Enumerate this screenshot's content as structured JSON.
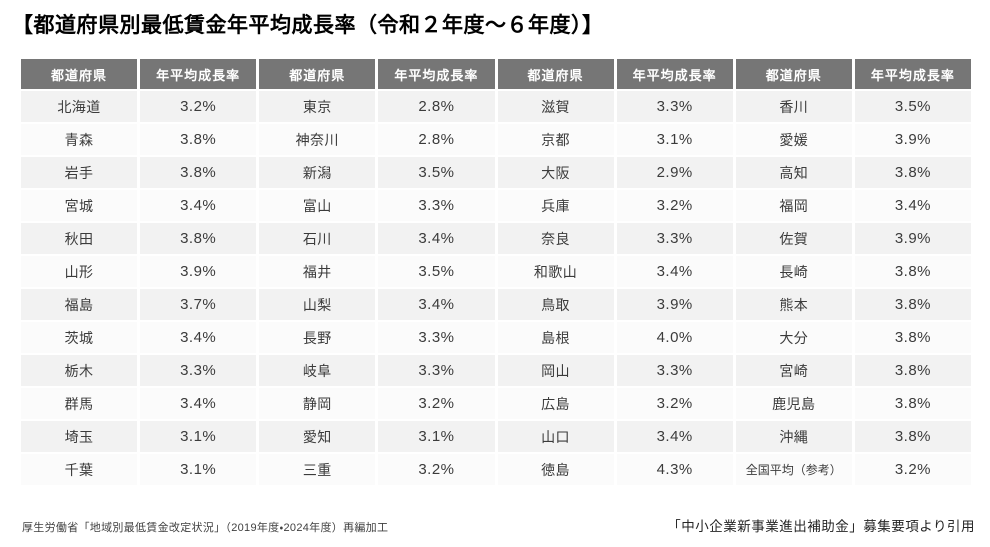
{
  "page": {
    "title": "【都道府県別最低賃金年平均成長率（令和２年度～６年度）】"
  },
  "table": {
    "header": {
      "prefecture": "都道府県",
      "rate": "年平均成長率"
    },
    "group_count": 4,
    "rows": [
      [
        {
          "p": "北海道",
          "v": "3.2%"
        },
        {
          "p": "東京",
          "v": "2.8%"
        },
        {
          "p": "滋賀",
          "v": "3.3%"
        },
        {
          "p": "香川",
          "v": "3.5%"
        }
      ],
      [
        {
          "p": "青森",
          "v": "3.8%"
        },
        {
          "p": "神奈川",
          "v": "2.8%"
        },
        {
          "p": "京都",
          "v": "3.1%"
        },
        {
          "p": "愛媛",
          "v": "3.9%"
        }
      ],
      [
        {
          "p": "岩手",
          "v": "3.8%"
        },
        {
          "p": "新潟",
          "v": "3.5%"
        },
        {
          "p": "大阪",
          "v": "2.9%"
        },
        {
          "p": "高知",
          "v": "3.8%"
        }
      ],
      [
        {
          "p": "宮城",
          "v": "3.4%"
        },
        {
          "p": "富山",
          "v": "3.3%"
        },
        {
          "p": "兵庫",
          "v": "3.2%"
        },
        {
          "p": "福岡",
          "v": "3.4%"
        }
      ],
      [
        {
          "p": "秋田",
          "v": "3.8%"
        },
        {
          "p": "石川",
          "v": "3.4%"
        },
        {
          "p": "奈良",
          "v": "3.3%"
        },
        {
          "p": "佐賀",
          "v": "3.9%"
        }
      ],
      [
        {
          "p": "山形",
          "v": "3.9%"
        },
        {
          "p": "福井",
          "v": "3.5%"
        },
        {
          "p": "和歌山",
          "v": "3.4%"
        },
        {
          "p": "長崎",
          "v": "3.8%"
        }
      ],
      [
        {
          "p": "福島",
          "v": "3.7%"
        },
        {
          "p": "山梨",
          "v": "3.4%"
        },
        {
          "p": "鳥取",
          "v": "3.9%"
        },
        {
          "p": "熊本",
          "v": "3.8%"
        }
      ],
      [
        {
          "p": "茨城",
          "v": "3.4%"
        },
        {
          "p": "長野",
          "v": "3.3%"
        },
        {
          "p": "島根",
          "v": "4.0%"
        },
        {
          "p": "大分",
          "v": "3.8%"
        }
      ],
      [
        {
          "p": "栃木",
          "v": "3.3%"
        },
        {
          "p": "岐阜",
          "v": "3.3%"
        },
        {
          "p": "岡山",
          "v": "3.3%"
        },
        {
          "p": "宮崎",
          "v": "3.8%"
        }
      ],
      [
        {
          "p": "群馬",
          "v": "3.4%"
        },
        {
          "p": "静岡",
          "v": "3.2%"
        },
        {
          "p": "広島",
          "v": "3.2%"
        },
        {
          "p": "鹿児島",
          "v": "3.8%"
        }
      ],
      [
        {
          "p": "埼玉",
          "v": "3.1%"
        },
        {
          "p": "愛知",
          "v": "3.1%"
        },
        {
          "p": "山口",
          "v": "3.4%"
        },
        {
          "p": "沖縄",
          "v": "3.8%"
        }
      ],
      [
        {
          "p": "千葉",
          "v": "3.1%"
        },
        {
          "p": "三重",
          "v": "3.2%"
        },
        {
          "p": "徳島",
          "v": "4.3%"
        },
        {
          "p": "全国平均（参考）",
          "v": "3.2%",
          "small": true
        }
      ]
    ]
  },
  "footnotes": {
    "left": "厚生労働省「地域別最低賃金改定状況」（2019年度・2024年度）再編加工",
    "right": "「中小企業新事業進出補助金」募集要項より引用"
  },
  "colors": {
    "header_bg": "#767676",
    "header_text": "#ffffff",
    "row_odd": "#f2f2f2",
    "row_even": "#fbfbfb",
    "body_text": "#3b3b3b"
  }
}
